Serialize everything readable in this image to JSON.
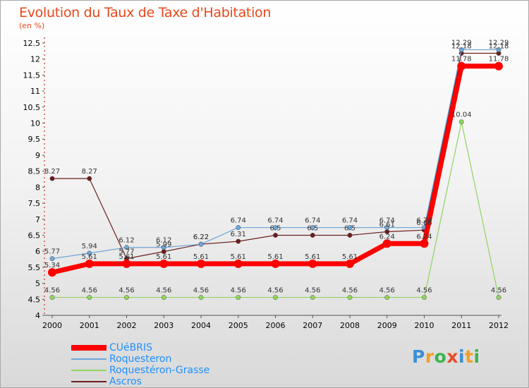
{
  "title": "Evolution du Taux de Taxe d'Habitation",
  "unit": "(en %)",
  "brand": {
    "letters": [
      "P",
      "r",
      "o",
      "x",
      "i",
      "t",
      "i"
    ],
    "colors": [
      "#3a8fd8",
      "#f0a02a",
      "#3cb44b",
      "#e84a2a",
      "#3a8fd8",
      "#f0a02a",
      "#3cb44b"
    ]
  },
  "chart_data": {
    "type": "line",
    "x": [
      "2000",
      "2001",
      "2002",
      "2003",
      "2004",
      "2005",
      "2006",
      "2007",
      "2008",
      "2009",
      "2010",
      "2011",
      "2012"
    ],
    "ylim": [
      4,
      12.5
    ],
    "yticks": [
      "4",
      "4.5",
      "5",
      "5.5",
      "6",
      "6.5",
      "7",
      "7.5",
      "8",
      "8.5",
      "9",
      "9.5",
      "10",
      "10.5",
      "11",
      "11.5",
      "12",
      "12.5"
    ],
    "grid": false,
    "legend_position": "bottom-left",
    "series": [
      {
        "name": "CUéBRIS",
        "color": "#ff0000",
        "width": 7,
        "values": [
          5.34,
          5.61,
          5.61,
          5.61,
          5.61,
          5.61,
          5.61,
          5.61,
          5.61,
          6.24,
          6.24,
          11.78,
          11.78
        ],
        "labels": [
          "5.34",
          "5.61",
          "5.61",
          "5.61",
          "5.61",
          "5.61",
          "5.61",
          "5.61",
          "5.61",
          "6.24",
          "6.24",
          "11.78",
          "11.78"
        ]
      },
      {
        "name": "Roquesteron",
        "color": "#6ea6d8",
        "width": 1.2,
        "values": [
          5.77,
          5.94,
          6.12,
          6.12,
          6.22,
          6.74,
          6.74,
          6.74,
          6.74,
          6.74,
          6.74,
          12.29,
          12.29
        ],
        "labels": [
          "5.77",
          "5.94",
          "6.12",
          "6.12",
          "6.22",
          "6.74",
          "6.74",
          "6.74",
          "6.74",
          "6.74",
          "6.74",
          "12.29",
          "12.29"
        ]
      },
      {
        "name": "Roquestéron-Grasse",
        "color": "#8fd45f",
        "width": 1.2,
        "values": [
          4.56,
          4.56,
          4.56,
          4.56,
          4.56,
          4.56,
          4.56,
          4.56,
          4.56,
          4.56,
          4.56,
          10.04,
          4.56
        ],
        "labels": [
          "4.56",
          "4.56",
          "4.56",
          "4.56",
          "4.56",
          "4.56",
          "4.56",
          "4.56",
          "4.56",
          "4.56",
          "4.56",
          "10.04",
          "4.56"
        ]
      },
      {
        "name": "Ascros",
        "color": "#6b1e1e",
        "width": 1.2,
        "values": [
          8.27,
          8.27,
          5.77,
          5.99,
          6.22,
          6.31,
          6.5,
          6.5,
          6.5,
          6.61,
          6.66,
          12.18,
          12.18
        ],
        "labels": [
          "8.27",
          "8.27",
          "5.77",
          "5.99",
          "6.22",
          "6.31",
          "6.5",
          "6.5",
          "6.5",
          "6.61",
          "6.66",
          "12.18",
          "12.18"
        ]
      }
    ]
  }
}
